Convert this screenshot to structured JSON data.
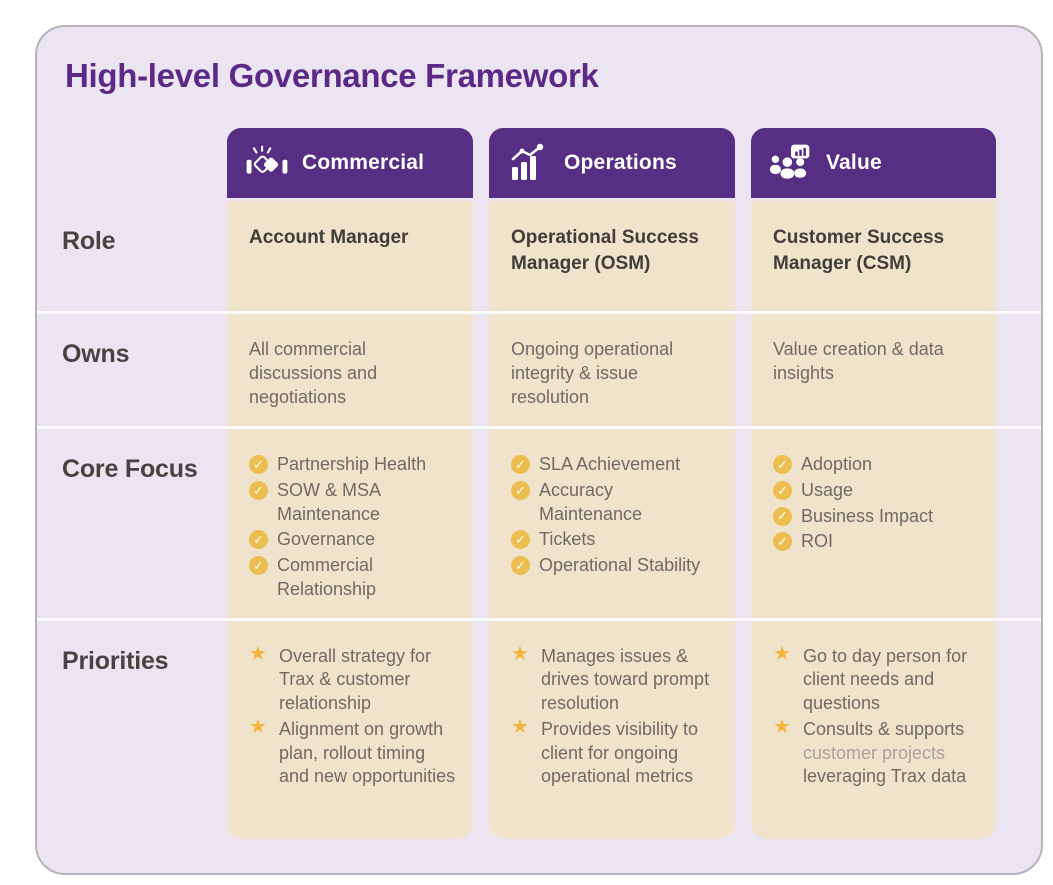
{
  "title": "High-level Governance Framework",
  "colors": {
    "card_background": "#EAE5F1",
    "header_purple": "#562E83",
    "title_purple": "#5B2A87",
    "cell_beige": "#F0E3CB",
    "gold": "#ECBE4F",
    "star_gold": "#F2B53D",
    "body_text": "#6F6A63",
    "label_text": "#474340",
    "muted_text": "#A9A29B",
    "card_border": "#B6B3BC"
  },
  "columns": [
    {
      "label": "Commercial",
      "icon": "handshake-icon"
    },
    {
      "label": "Operations",
      "icon": "growth-chart-icon"
    },
    {
      "label": "Value",
      "icon": "team-analytics-icon"
    }
  ],
  "rows": [
    {
      "label": "Role",
      "type": "text",
      "style": "role",
      "css": "row-role",
      "cells": [
        [
          {
            "text": "Account Manager"
          }
        ],
        [
          {
            "text": "Operational Success Manager (OSM)"
          }
        ],
        [
          {
            "text": "Customer Success Manager (CSM)"
          }
        ]
      ]
    },
    {
      "label": "Owns",
      "type": "text",
      "style": "plain",
      "css": "row-owns",
      "cells": [
        [
          {
            "text": "All commercial discussions and negotiations"
          }
        ],
        [
          {
            "text": "Ongoing operational integrity & issue resolution"
          }
        ],
        [
          {
            "text": "Value creation & data insights"
          }
        ]
      ]
    },
    {
      "label": "Core Focus",
      "type": "list",
      "bullet": "check",
      "css": "row-core",
      "cells": [
        [
          {
            "text": "Partnership Health"
          },
          {
            "text": "SOW & MSA Maintenance"
          },
          {
            "text": "Governance"
          },
          {
            "text": "Commercial Relationship"
          }
        ],
        [
          {
            "text": "SLA Achievement"
          },
          {
            "text": "Accuracy Maintenance"
          },
          {
            "text": "Tickets"
          },
          {
            "text": "Operational Stability"
          }
        ],
        [
          {
            "text": "Adoption"
          },
          {
            "text": "Usage"
          },
          {
            "text": "Business Impact"
          },
          {
            "text": "ROI"
          }
        ]
      ]
    },
    {
      "label": "Priorities",
      "type": "list",
      "bullet": "star",
      "css": "row-prior",
      "cells": [
        [
          {
            "text": "Overall strategy for Trax & customer relationship"
          },
          {
            "text": "Alignment on growth plan, rollout timing and new opportunities"
          }
        ],
        [
          {
            "text": "Manages issues & drives toward prompt resolution"
          },
          {
            "text": "Provides visibility to client for ongoing operational metrics"
          }
        ],
        [
          {
            "text": "Go to day person for client needs and questions"
          },
          {
            "segments": [
              {
                "text": "Consults & supports "
              },
              {
                "text": "customer projects",
                "muted": true
              },
              {
                "text": " leveraging Trax data"
              }
            ]
          }
        ]
      ]
    }
  ],
  "glyphs": {
    "check": "✓",
    "star": "★"
  }
}
